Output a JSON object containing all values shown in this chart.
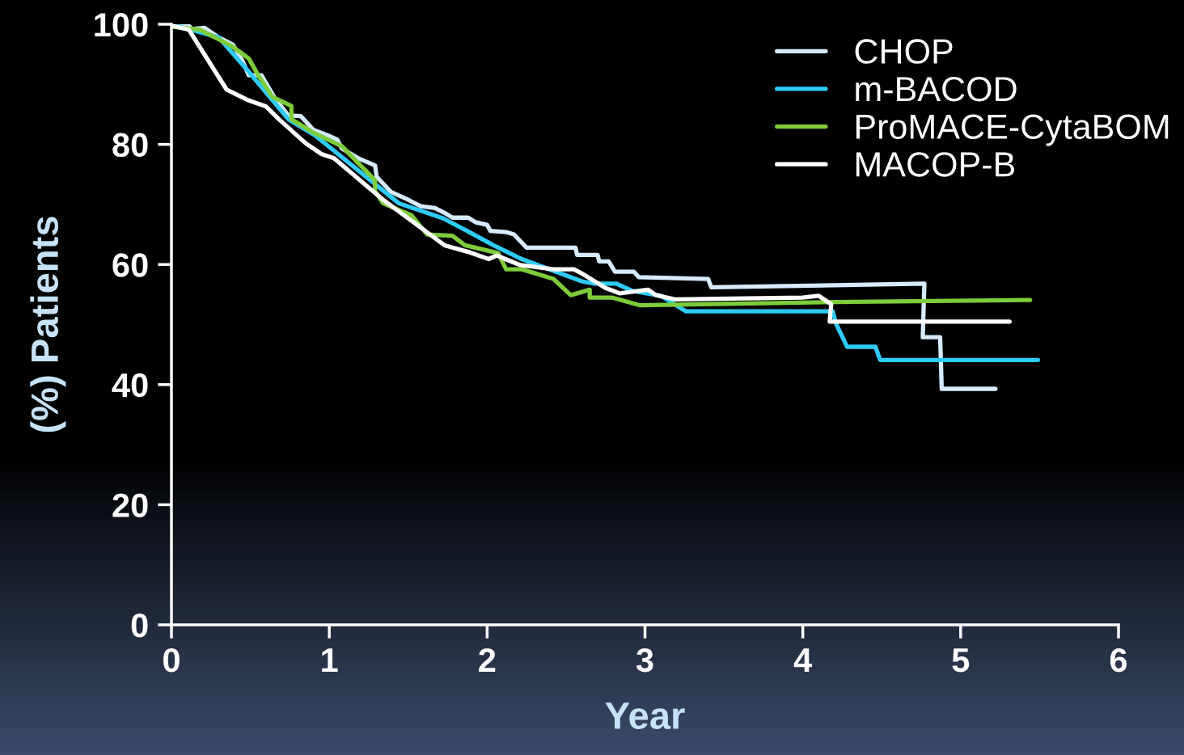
{
  "chart_data": {
    "type": "step",
    "xlabel": "Year",
    "ylabel": "(%) Patients",
    "xlim": [
      0,
      6
    ],
    "ylim": [
      0,
      100
    ],
    "xticks": [
      0,
      1,
      2,
      3,
      4,
      5,
      6
    ],
    "yticks": [
      0,
      20,
      40,
      60,
      80,
      100
    ],
    "grid": false,
    "legend": "top right",
    "marker": "none",
    "line_style": "solid",
    "series": [
      {
        "name": "CHOP",
        "color": "#d6ebff",
        "x": [
          0.01,
          0.1,
          0.13,
          0.21,
          0.3,
          0.39,
          0.45,
          0.49,
          0.57,
          0.65,
          0.74,
          0.82,
          0.9,
          0.99,
          1.05,
          1.08,
          1.19,
          1.29,
          1.3,
          1.39,
          1.49,
          1.58,
          1.67,
          1.73,
          1.78,
          1.88,
          1.93,
          2.0,
          2.02,
          2.12,
          2.17,
          2.25,
          2.56,
          2.57,
          2.7,
          2.71,
          2.77,
          2.81,
          2.93,
          2.96,
          3.4,
          3.42,
          4.77,
          4.76,
          4.87,
          4.88,
          5.22
        ],
        "values": [
          100,
          100,
          99.2,
          99.4,
          97.8,
          96.6,
          93.9,
          91.5,
          91.5,
          87.9,
          84.8,
          84.7,
          82.4,
          81.5,
          80.8,
          79.3,
          77.6,
          76.5,
          74.6,
          72.1,
          70.9,
          69.7,
          69.4,
          68.6,
          67.8,
          67.8,
          67.0,
          66.6,
          65.6,
          65.4,
          65.0,
          62.8,
          62.8,
          61.6,
          61.6,
          60.5,
          60.5,
          58.8,
          58.8,
          57.9,
          57.6,
          56.2,
          56.8,
          47.9,
          47.9,
          39.3,
          39.3
        ]
      },
      {
        "name": "m-BACOD",
        "color": "#2ecbf7",
        "x": [
          0,
          0.3,
          0.49,
          0.74,
          0.91,
          1.44,
          1.72,
          1.88,
          2.04,
          2.22,
          2.6,
          2.68,
          2.82,
          2.92,
          3.1,
          3.26,
          4.19,
          4.21,
          4.28,
          4.46,
          4.49,
          5.49
        ],
        "values": [
          100,
          97.8,
          92.1,
          84.2,
          81.5,
          70.2,
          67.7,
          65.5,
          63.2,
          60.9,
          57.2,
          56.8,
          56.8,
          55.6,
          54.8,
          52.2,
          52.2,
          50.2,
          46.3,
          46.3,
          44.1,
          44.1
        ]
      },
      {
        "name": "ProMACE-CytaBOM",
        "color": "#7dcc3a",
        "x": [
          0,
          0.18,
          0.38,
          0.49,
          0.55,
          0.64,
          0.76,
          0.76,
          0.91,
          1.08,
          1.29,
          1.29,
          1.34,
          1.52,
          1.62,
          1.78,
          1.86,
          2.07,
          2.12,
          2.22,
          2.42,
          2.53,
          2.65,
          2.65,
          2.79,
          2.97,
          4.33,
          5.44
        ],
        "values": [
          99.6,
          99.1,
          96.4,
          94.3,
          91.5,
          87.9,
          86.4,
          84.2,
          81.8,
          79.7,
          74.0,
          72.2,
          70.2,
          68.2,
          65.0,
          64.8,
          63.2,
          61.9,
          59.2,
          59.2,
          57.6,
          54.9,
          55.8,
          54.5,
          54.5,
          53.2,
          53.8,
          54.1
        ]
      },
      {
        "name": "MACOP-B",
        "color": "#ffffff",
        "x": [
          0,
          0.11,
          0.35,
          0.49,
          0.6,
          0.68,
          0.85,
          0.95,
          1.03,
          1.24,
          1.35,
          1.73,
          1.88,
          2.01,
          2.06,
          2.21,
          2.42,
          2.55,
          2.6,
          2.75,
          2.84,
          3.02,
          3.07,
          3.19,
          4.0,
          4.1,
          4.18,
          4.17,
          5.31
        ],
        "values": [
          99.8,
          99.1,
          89.1,
          87.3,
          86.3,
          84.2,
          80.2,
          78.4,
          77.7,
          73.0,
          70.6,
          63.2,
          62.1,
          60.9,
          61.5,
          59.9,
          59.2,
          59.2,
          58.5,
          56.1,
          55.2,
          55.8,
          54.9,
          54.2,
          54.5,
          54.8,
          53.4,
          50.5,
          50.5
        ]
      }
    ]
  }
}
